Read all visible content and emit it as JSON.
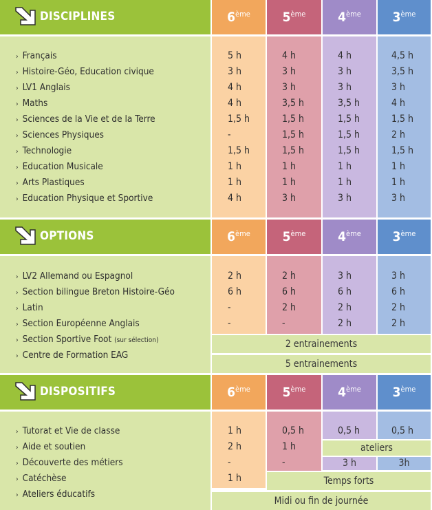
{
  "grades": [
    {
      "base": "6",
      "sup": "ème"
    },
    {
      "base": "5",
      "sup": "ème"
    },
    {
      "base": "4",
      "sup": "ème"
    },
    {
      "base": "3",
      "sup": "ème"
    }
  ],
  "disciplines": {
    "title": "DISCIPLINES",
    "rows": [
      {
        "name": "Français",
        "v": [
          "5 h",
          "4 h",
          "4 h",
          "4,5 h"
        ]
      },
      {
        "name": "Histoire-Géo, Education civique",
        "v": [
          "3 h",
          "3 h",
          "3 h",
          "3,5 h"
        ]
      },
      {
        "name": "LV1 Anglais",
        "v": [
          "4 h",
          "3 h",
          "3 h",
          "3 h"
        ]
      },
      {
        "name": "Maths",
        "v": [
          "4 h",
          "3,5 h",
          "3,5 h",
          "4 h"
        ]
      },
      {
        "name": "Sciences de la Vie et de la Terre",
        "v": [
          "1,5 h",
          "1,5 h",
          "1,5 h",
          "1,5 h"
        ]
      },
      {
        "name": "Sciences Physiques",
        "v": [
          "-",
          "1,5 h",
          "1,5 h",
          "2 h"
        ]
      },
      {
        "name": "Technologie",
        "v": [
          "1,5 h",
          "1,5 h",
          "1,5 h",
          "1,5 h"
        ]
      },
      {
        "name": "Education Musicale",
        "v": [
          "1 h",
          "1 h",
          "1 h",
          "1 h"
        ]
      },
      {
        "name": "Arts Plastiques",
        "v": [
          "1 h",
          "1 h",
          "1 h",
          "1 h"
        ]
      },
      {
        "name": "Education Physique et Sportive",
        "v": [
          "4 h",
          "3 h",
          "3 h",
          "3 h"
        ]
      }
    ]
  },
  "options": {
    "title": "OPTIONS",
    "rows": [
      {
        "name": "LV2 Allemand ou Espagnol",
        "v": [
          "2 h",
          "2 h",
          "3 h",
          "3 h"
        ]
      },
      {
        "name": "Section bilingue Breton Histoire-Géo",
        "v": [
          "6 h",
          "6 h",
          "6 h",
          "6 h"
        ]
      },
      {
        "name": "Latin",
        "v": [
          "-",
          "2 h",
          "2 h",
          "2 h"
        ]
      },
      {
        "name": "Section Européenne Anglais",
        "v": [
          "-",
          "-",
          "2 h",
          "2 h"
        ]
      }
    ],
    "foot_name": "Section Sportive Foot",
    "foot_note": "(sur sélection)",
    "foot_value": "2 entrainements",
    "eag_name": "Centre de Formation EAG",
    "eag_value": "5 entrainements"
  },
  "dispositifs": {
    "title": "DISPOSITIFS",
    "rows": [
      {
        "name": "Tutorat et Vie de classe"
      },
      {
        "name": "Aide et soutien"
      },
      {
        "name": "Découverte des métiers"
      },
      {
        "name": "Catéchèse"
      },
      {
        "name": "Ateliers éducatifs"
      }
    ],
    "tutorat": [
      "1 h",
      "0,5 h",
      "0,5 h",
      "0,5 h"
    ],
    "aide": [
      "2 h",
      "1 h"
    ],
    "ateliers": "ateliers",
    "decouverte": [
      "-",
      "-",
      "3 h",
      "3h"
    ],
    "catechese": "1 h",
    "temps_forts": "Temps forts",
    "midi": "Midi ou fin de journée"
  },
  "colors": {
    "lime_header": "#9bc23a",
    "lime_band": "#d9e6a9",
    "sixth": "#f2a75c",
    "fifth": "#c5647a",
    "fourth": "#9f8bc8",
    "third": "#5f8fcc"
  }
}
